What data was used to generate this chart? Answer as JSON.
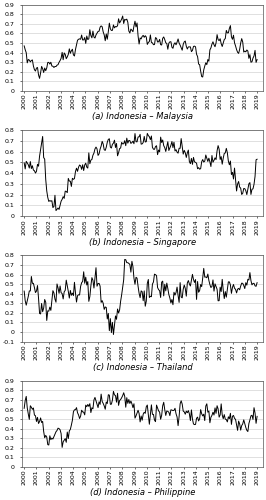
{
  "subplots": [
    {
      "label": "(a) Indonesia – Malaysia",
      "ylim": [
        0,
        0.9
      ],
      "yticks": [
        0,
        0.1,
        0.2,
        0.3,
        0.4,
        0.5,
        0.6,
        0.7,
        0.8,
        0.9
      ]
    },
    {
      "label": "(b) Indonesia – Singapore",
      "ylim": [
        0,
        0.8
      ],
      "yticks": [
        0,
        0.1,
        0.2,
        0.3,
        0.4,
        0.5,
        0.6,
        0.7,
        0.8
      ]
    },
    {
      "label": "(c) Indonesia – Thailand",
      "ylim": [
        -0.1,
        0.8
      ],
      "yticks": [
        -0.1,
        0,
        0.1,
        0.2,
        0.3,
        0.4,
        0.5,
        0.6,
        0.7,
        0.8
      ]
    },
    {
      "label": "(d) Indonesia – Philippine",
      "ylim": [
        0,
        0.9
      ],
      "yticks": [
        0,
        0.1,
        0.2,
        0.3,
        0.4,
        0.5,
        0.6,
        0.7,
        0.8,
        0.9
      ]
    }
  ],
  "xtick_years": [
    2000,
    2001,
    2002,
    2003,
    2004,
    2005,
    2006,
    2007,
    2008,
    2009,
    2010,
    2011,
    2012,
    2013,
    2014,
    2015,
    2016,
    2017,
    2018,
    2019
  ],
  "line_color": "#000000",
  "line_width": 0.7,
  "background_color": "#ffffff",
  "label_fontsize": 6,
  "tick_fontsize": 4.5
}
